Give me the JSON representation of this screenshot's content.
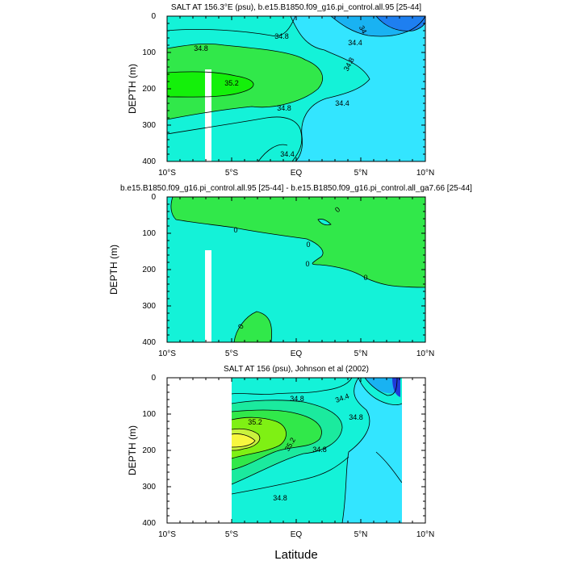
{
  "figure": {
    "xlabel": "Latitude",
    "colors": {
      "light_cyan": "#33e5ff",
      "cyan_blue": "#19b2f2",
      "blue": "#1e7ff0",
      "dark_blue": "#1f3ad8",
      "aqua": "#14f2d8",
      "teal_green": "#1bea9e",
      "green": "#31e84a",
      "bright_green": "#14f00a",
      "lime": "#7ff014",
      "yellow_green": "#c9f23d",
      "yellow": "#f7f73f",
      "white_gap": "#ffffff",
      "contour": "#000000"
    }
  },
  "chart_data": [
    {
      "type": "contour",
      "title": "SALT AT 156.3°E (psu), b.e15.B1850.f09_g16.pi_control.all.95 [25-44]",
      "xlabel": "",
      "ylabel": "DEPTH (m)",
      "x_ticks": [
        "10°S",
        "5°S",
        "EQ",
        "5°N",
        "10°N"
      ],
      "y_ticks": [
        "0",
        "100",
        "200",
        "300",
        "400"
      ],
      "xlim": [
        -10,
        10
      ],
      "ylim": [
        400,
        0
      ],
      "contour_labels": [
        "34",
        "34.4",
        "34.8",
        "34.8",
        "34.8",
        "35.2",
        "34.8",
        "34.4",
        "34.4"
      ]
    },
    {
      "type": "contour",
      "title": "b.e15.B1850.f09_g16.pi_control.all.95 [25-44] - b.e15.B1850.f09_g16.pi_control.all_ga7.66 [25-44]",
      "xlabel": "",
      "ylabel": "DEPTH (m)",
      "x_ticks": [
        "10°S",
        "5°S",
        "EQ",
        "5°N",
        "10°N"
      ],
      "y_ticks": [
        "0",
        "100",
        "200",
        "300",
        "400"
      ],
      "xlim": [
        -10,
        10
      ],
      "ylim": [
        400,
        0
      ],
      "contour_labels": [
        "0",
        "0",
        "0",
        "0",
        "0",
        "0",
        "0"
      ]
    },
    {
      "type": "contour",
      "title": "SALT AT 156 (psu), Johnson et al (2002)",
      "xlabel": "Latitude",
      "ylabel": "DEPTH (m)",
      "x_ticks": [
        "10°S",
        "5°S",
        "EQ",
        "5°N",
        "10°N"
      ],
      "y_ticks": [
        "0",
        "100",
        "200",
        "300",
        "400"
      ],
      "xlim": [
        -10,
        10
      ],
      "ylim": [
        400,
        0
      ],
      "data_xrange": [
        -5,
        8
      ],
      "contour_labels": [
        "34.8",
        "34.4",
        "35.2",
        "34.8",
        "35.2",
        "34.8",
        "34.8"
      ]
    }
  ]
}
